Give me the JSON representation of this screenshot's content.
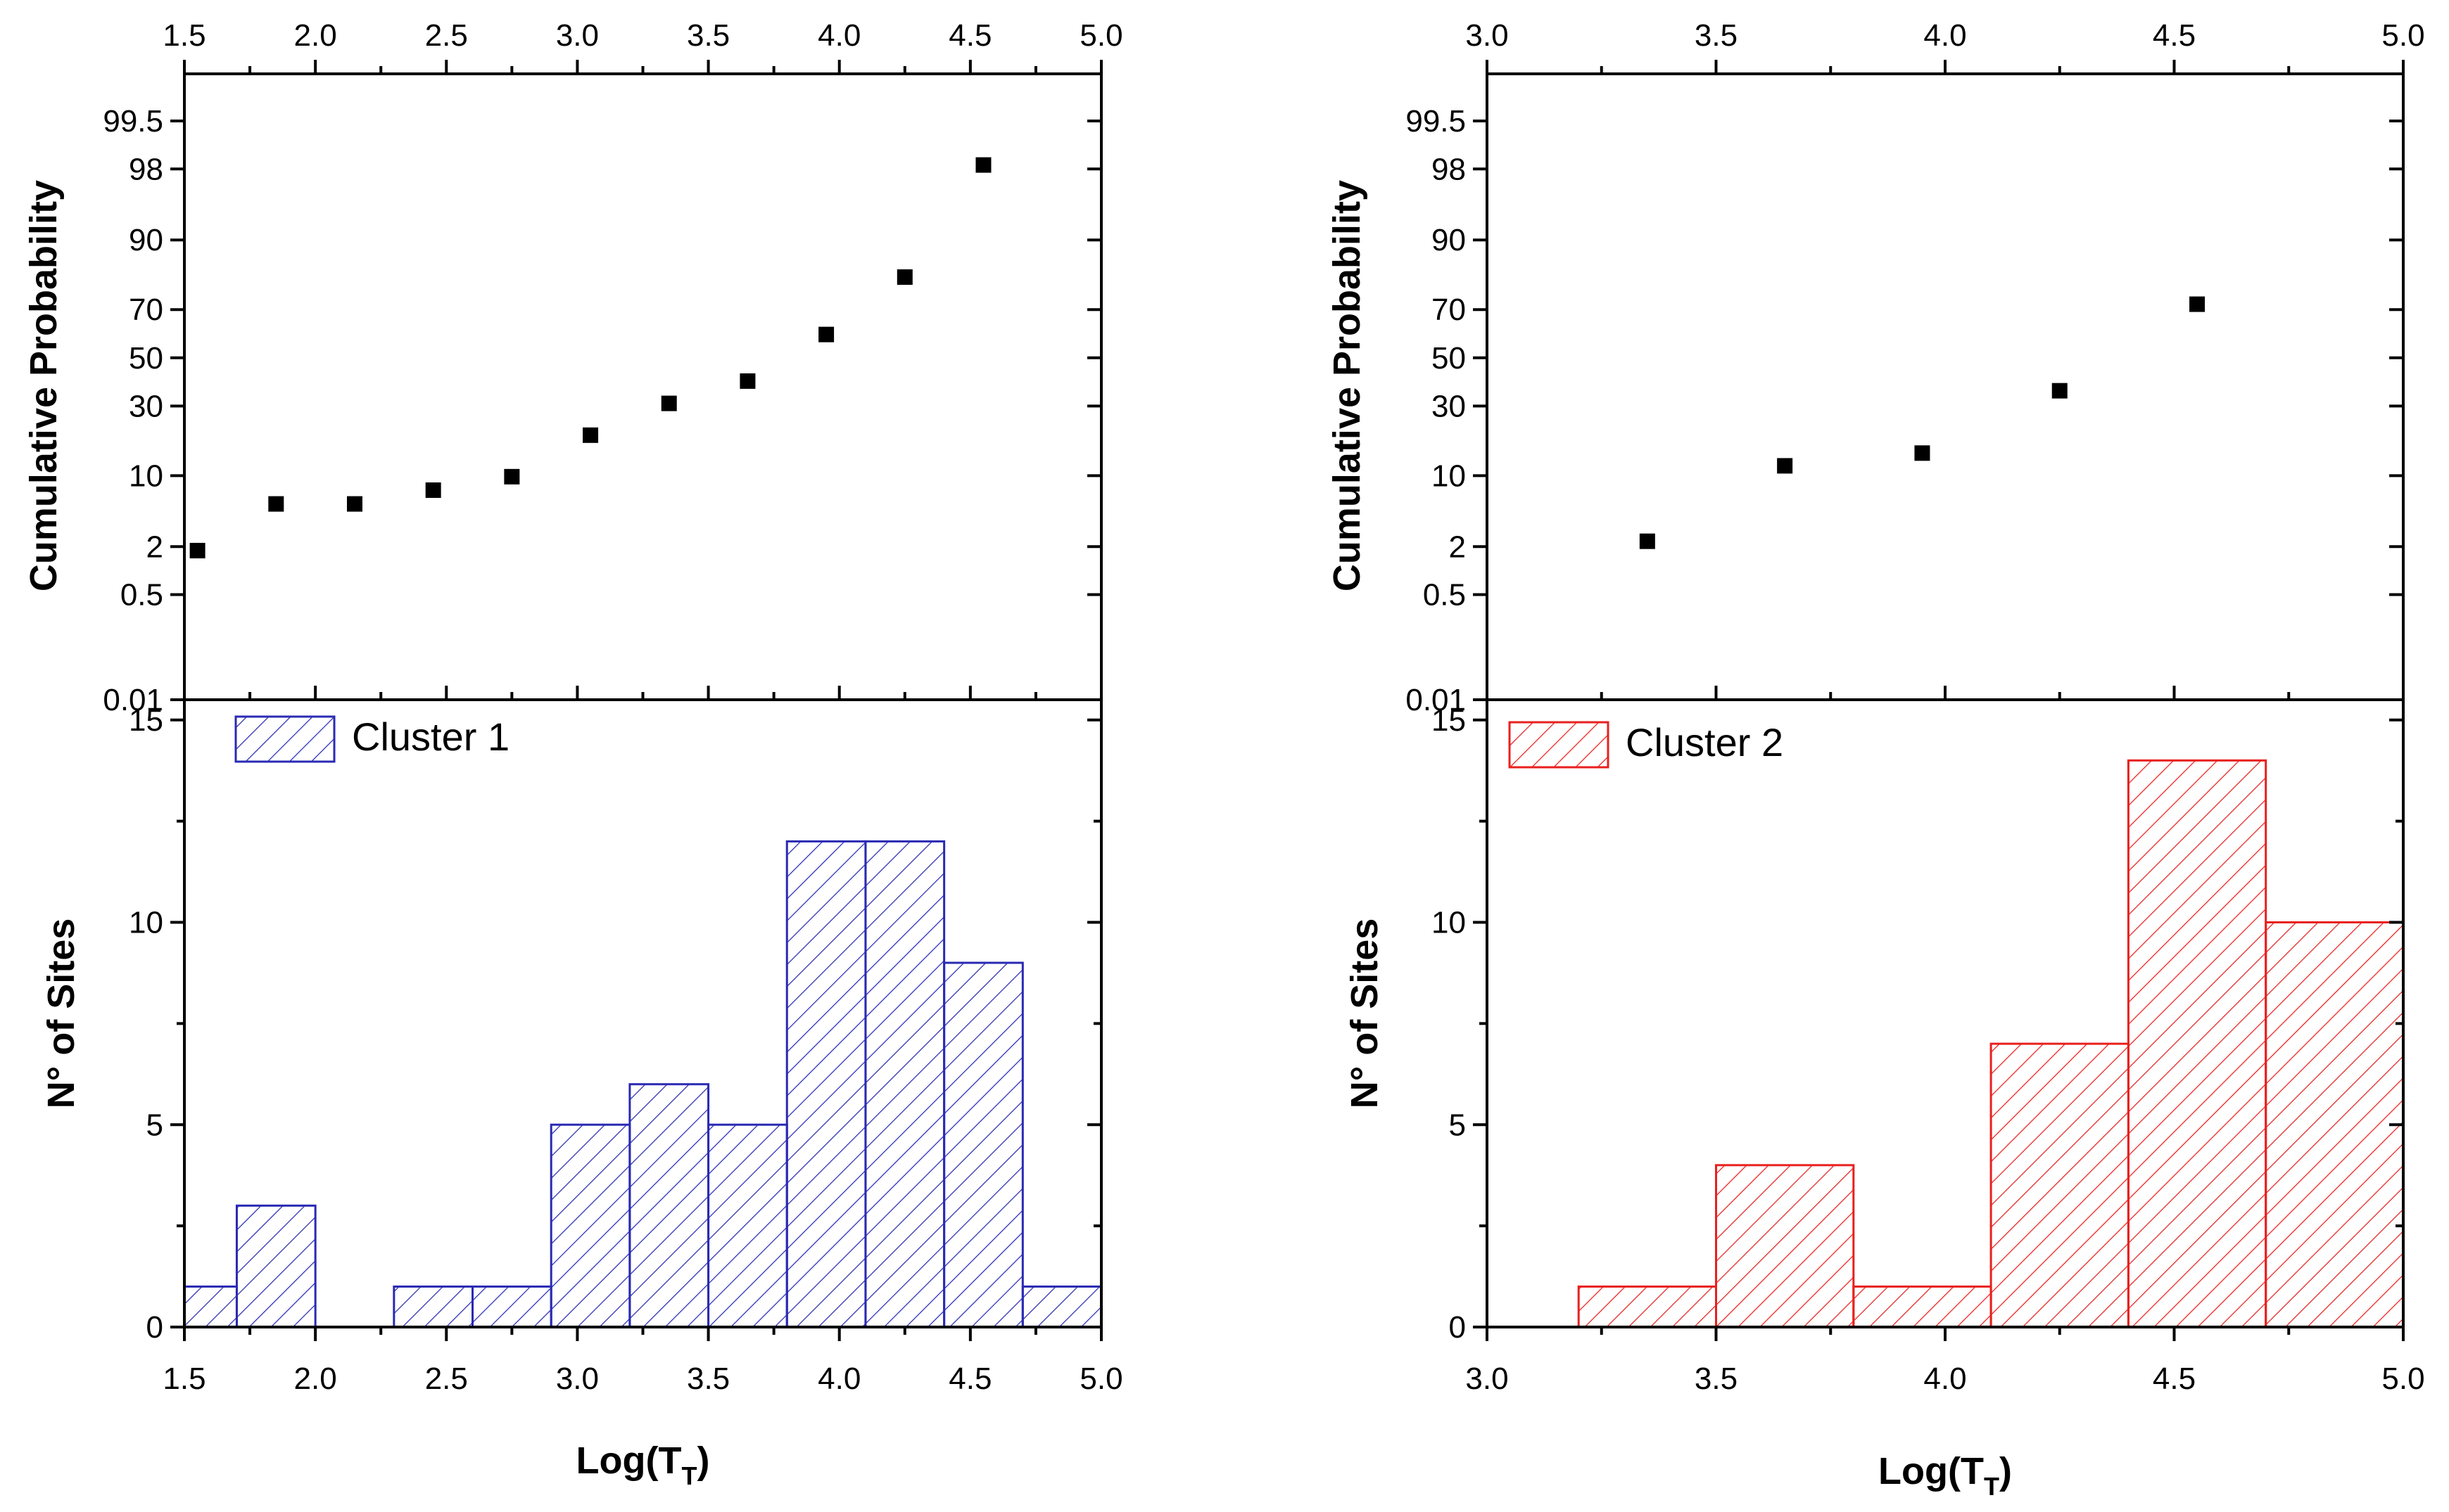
{
  "chart_data": [
    {
      "id": "left",
      "type": "histogram+probability",
      "x": {
        "label": "Log(T",
        "label_sub": "T",
        "label_close": ")",
        "range": [
          1.5,
          5.0
        ],
        "ticks": [
          1.5,
          2.0,
          2.5,
          3.0,
          3.5,
          4.0,
          4.5,
          5.0
        ],
        "tick_labels": [
          "1.5",
          "2.0",
          "2.5",
          "3.0",
          "3.5",
          "4.0",
          "4.5",
          "5.0"
        ]
      },
      "probability": {
        "ylabel": "Cumulative Probability",
        "scale": "probability",
        "ticks": [
          0.01,
          0.5,
          2,
          10,
          30,
          50,
          70,
          90,
          98,
          99.5
        ],
        "tick_labels": [
          "0.01",
          "0.5",
          "2",
          "10",
          "30",
          "50",
          "70",
          "90",
          "98",
          "99.5"
        ],
        "points": [
          {
            "x": 1.55,
            "y": 1.8
          },
          {
            "x": 1.85,
            "y": 5.6
          },
          {
            "x": 2.15,
            "y": 5.6
          },
          {
            "x": 2.45,
            "y": 7.5
          },
          {
            "x": 2.75,
            "y": 9.8
          },
          {
            "x": 3.05,
            "y": 20
          },
          {
            "x": 3.35,
            "y": 31
          },
          {
            "x": 3.65,
            "y": 40
          },
          {
            "x": 3.95,
            "y": 60
          },
          {
            "x": 4.25,
            "y": 81
          },
          {
            "x": 4.55,
            "y": 98.2
          }
        ]
      },
      "histogram": {
        "ylabel": "N° of Sites",
        "ylim": [
          0,
          15.5
        ],
        "ticks": [
          0,
          5,
          10,
          15
        ],
        "tick_labels": [
          "0",
          "5",
          "10",
          "15"
        ],
        "legend": "Cluster 1",
        "color": "#2a2ab4",
        "bins": [
          {
            "from": 1.5,
            "to": 1.7,
            "count": 1
          },
          {
            "from": 1.7,
            "to": 2.0,
            "count": 3
          },
          {
            "from": 2.3,
            "to": 2.6,
            "count": 1
          },
          {
            "from": 2.6,
            "to": 2.9,
            "count": 1
          },
          {
            "from": 2.9,
            "to": 3.2,
            "count": 5
          },
          {
            "from": 3.2,
            "to": 3.5,
            "count": 6
          },
          {
            "from": 3.5,
            "to": 3.8,
            "count": 5
          },
          {
            "from": 3.8,
            "to": 4.1,
            "count": 12
          },
          {
            "from": 4.1,
            "to": 4.4,
            "count": 12
          },
          {
            "from": 4.4,
            "to": 4.7,
            "count": 9
          },
          {
            "from": 4.7,
            "to": 5.0,
            "count": 1
          }
        ]
      }
    },
    {
      "id": "right",
      "type": "histogram+probability",
      "x": {
        "label": "Log(T",
        "label_sub": "T",
        "label_close": ")",
        "range": [
          3.0,
          5.0
        ],
        "ticks": [
          3.0,
          3.5,
          4.0,
          4.5,
          5.0
        ],
        "tick_labels": [
          "3.0",
          "3.5",
          "4.0",
          "4.5",
          "5.0"
        ]
      },
      "probability": {
        "ylabel": "Cumulative Probability",
        "scale": "probability",
        "ticks": [
          0.01,
          0.5,
          2,
          10,
          30,
          50,
          70,
          90,
          98,
          99.5
        ],
        "tick_labels": [
          "0.01",
          "0.5",
          "2",
          "10",
          "30",
          "50",
          "70",
          "90",
          "98",
          "99.5"
        ],
        "points": [
          {
            "x": 3.35,
            "y": 2.3
          },
          {
            "x": 3.65,
            "y": 12
          },
          {
            "x": 3.95,
            "y": 15
          },
          {
            "x": 4.25,
            "y": 36
          },
          {
            "x": 4.55,
            "y": 72
          }
        ]
      },
      "histogram": {
        "ylabel": "N° of Sites",
        "ylim": [
          0,
          15.5
        ],
        "ticks": [
          0,
          5,
          10,
          15
        ],
        "tick_labels": [
          "0",
          "5",
          "10",
          "15"
        ],
        "legend": "Cluster 2",
        "color": "#e8201e",
        "bins": [
          {
            "from": 3.2,
            "to": 3.5,
            "count": 1
          },
          {
            "from": 3.5,
            "to": 3.8,
            "count": 4
          },
          {
            "from": 3.8,
            "to": 4.1,
            "count": 1
          },
          {
            "from": 4.1,
            "to": 4.4,
            "count": 7
          },
          {
            "from": 4.4,
            "to": 4.7,
            "count": 14
          },
          {
            "from": 4.7,
            "to": 5.0,
            "count": 10
          }
        ]
      }
    }
  ]
}
